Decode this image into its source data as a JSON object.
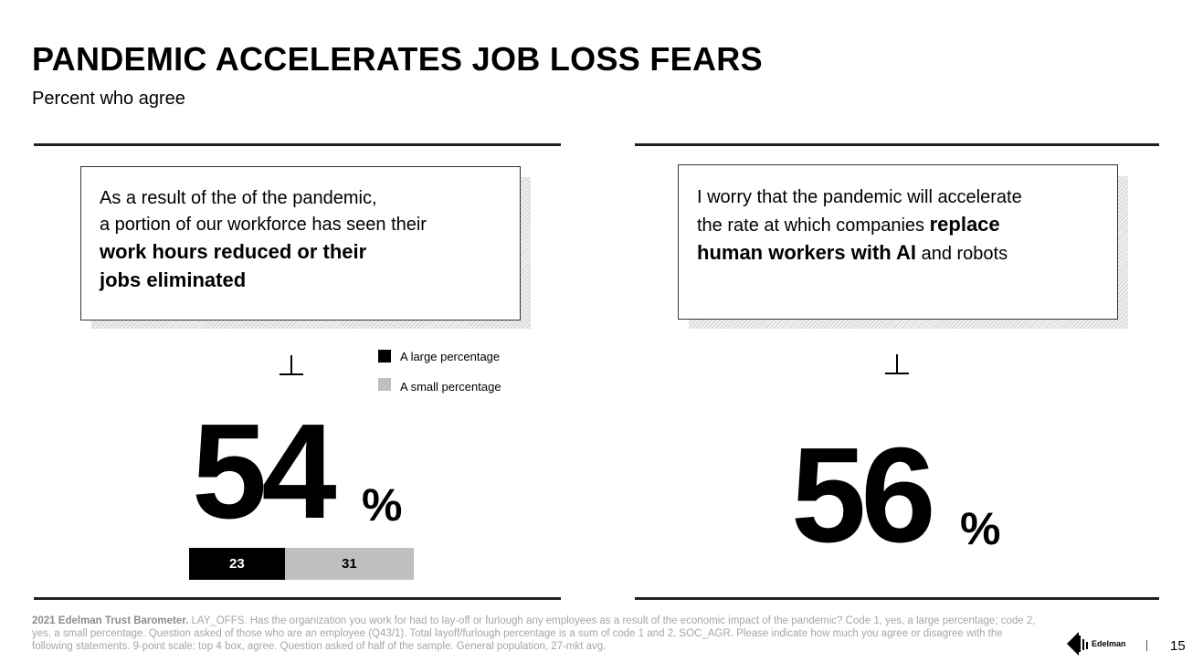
{
  "header": {
    "title": "PANDEMIC ACCELERATES JOB LOSS FEARS",
    "subtitle": "Percent who agree"
  },
  "left_panel": {
    "statement": {
      "line1": "As a result of the of the pandemic,",
      "line2": "a portion of our workforce has seen their",
      "bold1": "work hours reduced or their",
      "bold2": "jobs eliminated"
    },
    "big_value": "54",
    "percent_sign": "%"
  },
  "right_panel": {
    "statement": {
      "line1": "I worry that the pandemic will accelerate",
      "line2_pre": "the rate at which companies ",
      "bold1": "replace",
      "bold2": "human workers with AI",
      "post": " and robots"
    },
    "big_value": "56",
    "percent_sign": "%"
  },
  "chart_data": {
    "type": "bar",
    "orientation": "horizontal-stacked",
    "series": [
      {
        "name": "A large percentage",
        "values": [
          23
        ],
        "color": "#000000",
        "label_color": "#ffffff"
      },
      {
        "name": "A small percentage",
        "values": [
          31
        ],
        "color": "#bfbfbf",
        "label_color": "#000000"
      }
    ],
    "total": 54,
    "legend_position": "top-right"
  },
  "footer": {
    "source_bold": "2021 Edelman Trust Barometer.",
    "source_text": " LAY_OFFS.  Has the organization you work for had to lay-off or furlough any employees as a result of the economic impact of the pandemic? Code 1, yes, a large percentage; code 2, yes, a small percentage. Question asked of those who are an employee (Q43/1). Total layoff/furlough percentage is a sum of code 1 and 2. SOC_AGR. Please indicate how much you agree or disagree with the following statements. 9-point scale; top 4 box, agree. Question asked of half of the sample. General population, 27-mkt avg.",
    "logo_text": "Edelman",
    "page_number": "15"
  },
  "colors": {
    "accent_dark": "#000000",
    "accent_light": "#bfbfbf",
    "footnote": "#a6a6a6"
  }
}
